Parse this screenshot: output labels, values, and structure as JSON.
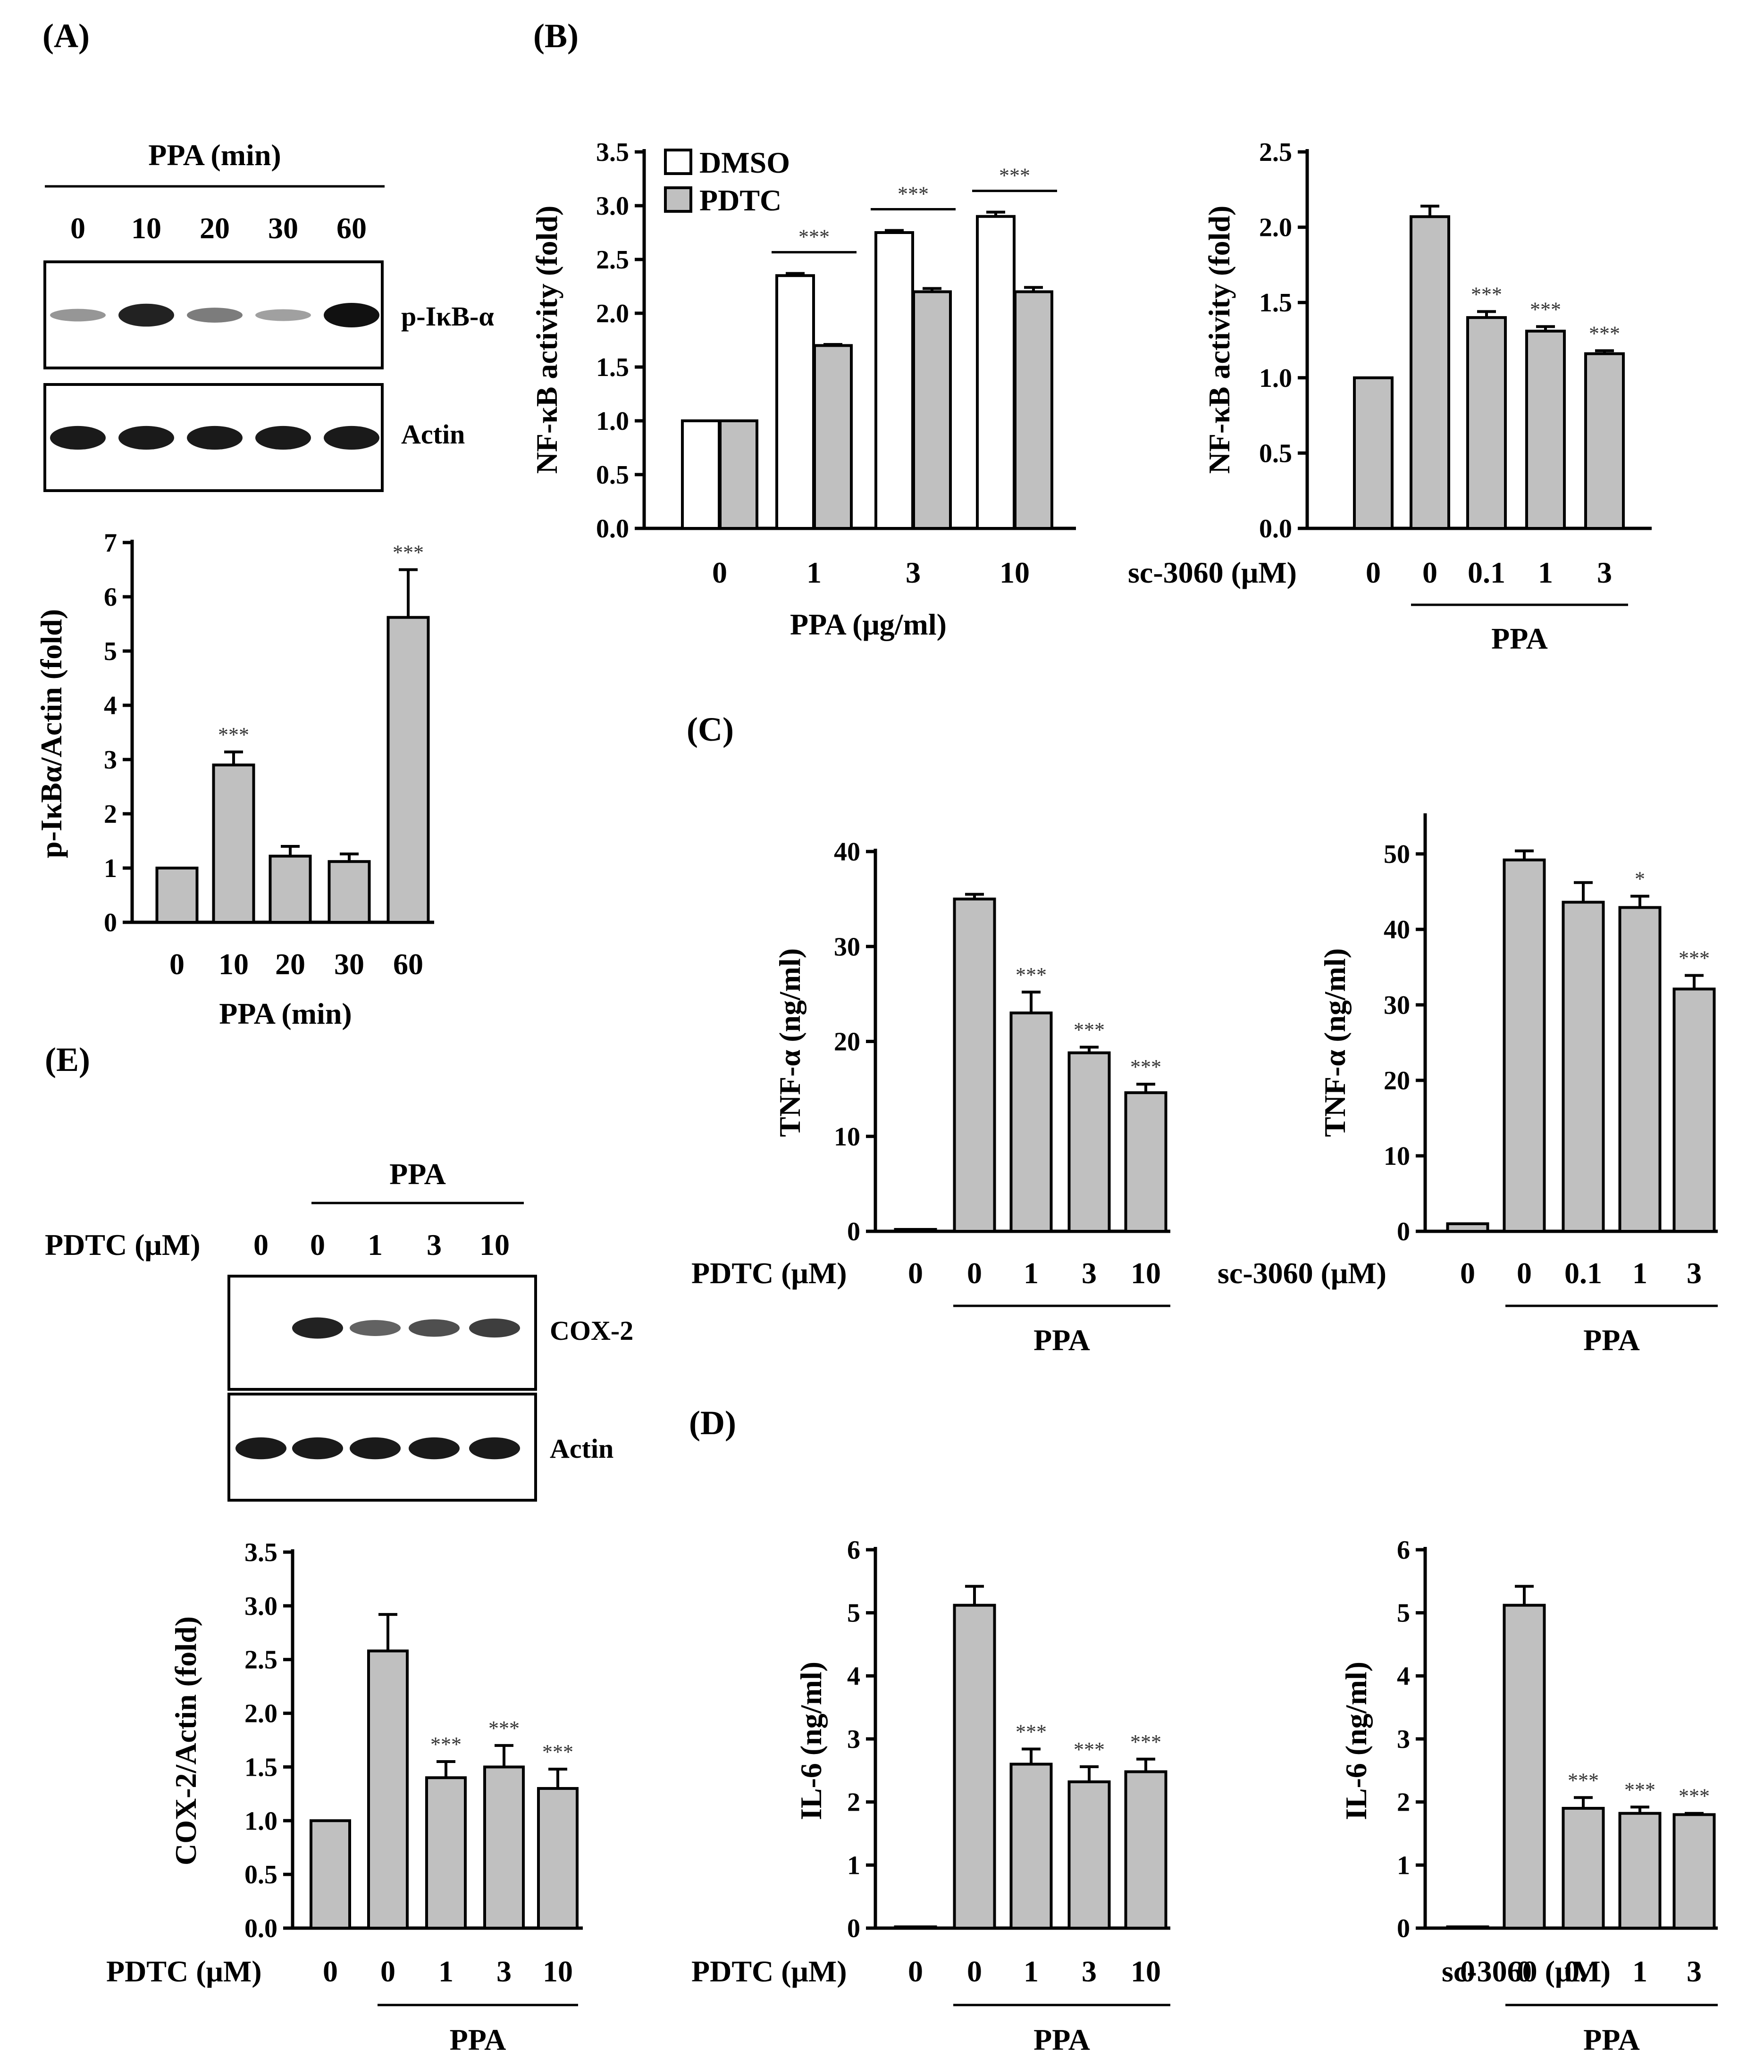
{
  "colors": {
    "gray_bar": "#c0c0c0",
    "white_bar": "#ffffff",
    "band": "#111111"
  },
  "panels": {
    "A": {
      "label": "(A)"
    },
    "B": {
      "label": "(B)"
    },
    "C": {
      "label": "(C)"
    },
    "D": {
      "label": "(D)"
    },
    "E": {
      "label": "(E)"
    }
  },
  "blots": {
    "A": {
      "title": "PPA (min)",
      "lanes": [
        "0",
        "10",
        "20",
        "30",
        "60"
      ],
      "rows": [
        {
          "label": "p-IκB-α",
          "intensity": [
            0.25,
            0.9,
            0.4,
            0.2,
            1.0
          ]
        },
        {
          "label": "Actin",
          "intensity": [
            0.95,
            0.95,
            0.95,
            0.95,
            0.95
          ]
        }
      ]
    },
    "E": {
      "title": "PPA",
      "treatment_label": "PDTC (μM)",
      "lanes": [
        "0",
        "0",
        "1",
        "3",
        "10"
      ],
      "rows": [
        {
          "label": "COX-2",
          "intensity": [
            0.0,
            0.9,
            0.55,
            0.65,
            0.75
          ]
        },
        {
          "label": "Actin",
          "intensity": [
            0.95,
            0.95,
            0.95,
            0.95,
            0.95
          ]
        }
      ]
    }
  },
  "chart_data": [
    {
      "id": "A_chart",
      "type": "bar",
      "ylabel": "p-IκBα/Actin (fold)",
      "xlabel": "PPA (min)",
      "ylim": [
        0,
        7
      ],
      "yticks": [
        "0",
        "1",
        "2",
        "3",
        "4",
        "5",
        "6",
        "7"
      ],
      "categories": [
        "0",
        "10",
        "20",
        "30",
        "60"
      ],
      "values": [
        1.0,
        2.9,
        1.22,
        1.12,
        5.62
      ],
      "errors": [
        0,
        0.24,
        0.18,
        0.14,
        0.88
      ],
      "stars": [
        "",
        "***",
        "",
        "",
        "***"
      ]
    },
    {
      "id": "B_left",
      "type": "bar",
      "ylabel": "NF-κB activity (fold)",
      "xlabel": "PPA (μg/ml)",
      "ylim": [
        0,
        3.5
      ],
      "yticks": [
        "0.0",
        "0.5",
        "1.0",
        "1.5",
        "2.0",
        "2.5",
        "3.0",
        "3.5"
      ],
      "categories": [
        "0",
        "1",
        "3",
        "10"
      ],
      "series": [
        {
          "name": "DMSO",
          "values": [
            1.0,
            2.35,
            2.75,
            2.9
          ],
          "errors": [
            0,
            0.02,
            0.02,
            0.04
          ]
        },
        {
          "name": "PDTC",
          "values": [
            1.0,
            1.7,
            2.2,
            2.2
          ],
          "errors": [
            0,
            0.01,
            0.03,
            0.04
          ]
        }
      ],
      "brackets": [
        "",
        "***",
        "***",
        "***"
      ]
    },
    {
      "id": "B_right",
      "type": "bar",
      "ylabel": "NF-κB activity (fold)",
      "treatment_label": "sc-3060 (μM)",
      "group_label": "PPA",
      "ylim": [
        0,
        2.5
      ],
      "yticks": [
        "0.0",
        "0.5",
        "1.0",
        "1.5",
        "2.0",
        "2.5"
      ],
      "categories": [
        "0",
        "0",
        "0.1",
        "1",
        "3"
      ],
      "values": [
        1.0,
        2.07,
        1.4,
        1.31,
        1.16
      ],
      "errors": [
        0,
        0.07,
        0.04,
        0.03,
        0.02
      ],
      "stars": [
        "",
        "",
        "***",
        "***",
        "***"
      ]
    },
    {
      "id": "C_left",
      "type": "bar",
      "ylabel": "TNF-α (ng/ml)",
      "treatment_label": "PDTC (μM)",
      "group_label": "PPA",
      "ylim": [
        0,
        40
      ],
      "yticks": [
        "0",
        "10",
        "20",
        "30",
        "40"
      ],
      "categories": [
        "0",
        "0",
        "1",
        "3",
        "10"
      ],
      "values": [
        0.2,
        35.0,
        23.0,
        18.8,
        14.6
      ],
      "errors": [
        0,
        0.5,
        2.2,
        0.6,
        0.9
      ],
      "stars": [
        "",
        "",
        "***",
        "***",
        "***"
      ]
    },
    {
      "id": "C_right",
      "type": "bar",
      "ylabel": "TNF-α (ng/ml)",
      "treatment_label": "sc-3060 (μM)",
      "group_label": "PPA",
      "ylim": [
        0,
        55
      ],
      "yticks": [
        "0",
        "10",
        "20",
        "30",
        "40",
        "50"
      ],
      "categories": [
        "0",
        "0",
        "0.1",
        "1",
        "3"
      ],
      "values": [
        1.0,
        49.2,
        43.6,
        42.9,
        32.1
      ],
      "errors": [
        0,
        1.2,
        2.6,
        1.5,
        1.8
      ],
      "stars": [
        "",
        "",
        "",
        "*",
        "***"
      ]
    },
    {
      "id": "D_left",
      "type": "bar",
      "ylabel": "IL-6 (ng/ml)",
      "treatment_label": "PDTC (μM)",
      "group_label": "PPA",
      "ylim": [
        0,
        6
      ],
      "yticks": [
        "0",
        "1",
        "2",
        "3",
        "4",
        "5",
        "6"
      ],
      "categories": [
        "0",
        "0",
        "1",
        "3",
        "10"
      ],
      "values": [
        0.02,
        5.12,
        2.6,
        2.32,
        2.48
      ],
      "errors": [
        0,
        0.3,
        0.24,
        0.24,
        0.2
      ],
      "stars": [
        "",
        "",
        "***",
        "***",
        "***"
      ]
    },
    {
      "id": "D_right",
      "type": "bar",
      "ylabel": "IL-6 (ng/ml)",
      "treatment_label": "sc-3060 (μM)",
      "group_label": "PPA",
      "ylim": [
        0,
        6
      ],
      "yticks": [
        "0",
        "1",
        "2",
        "3",
        "4",
        "5",
        "6"
      ],
      "categories": [
        "0",
        "0",
        "0.1",
        "1",
        "3"
      ],
      "values": [
        0.02,
        5.12,
        1.9,
        1.82,
        1.8
      ],
      "errors": [
        0,
        0.3,
        0.17,
        0.1,
        0.02
      ],
      "stars": [
        "",
        "",
        "***",
        "***",
        "***"
      ]
    },
    {
      "id": "E_chart",
      "type": "bar",
      "ylabel": "COX-2/Actin (fold)",
      "treatment_label": "PDTC (μM)",
      "group_label": "PPA",
      "ylim": [
        0,
        3.5
      ],
      "yticks": [
        "0.0",
        "0.5",
        "1.0",
        "1.5",
        "2.0",
        "2.5",
        "3.0",
        "3.5"
      ],
      "categories": [
        "0",
        "0",
        "1",
        "3",
        "10"
      ],
      "values": [
        1.0,
        2.58,
        1.4,
        1.5,
        1.3
      ],
      "errors": [
        0,
        0.34,
        0.15,
        0.2,
        0.18
      ],
      "stars": [
        "",
        "",
        "***",
        "***",
        "***"
      ]
    }
  ]
}
